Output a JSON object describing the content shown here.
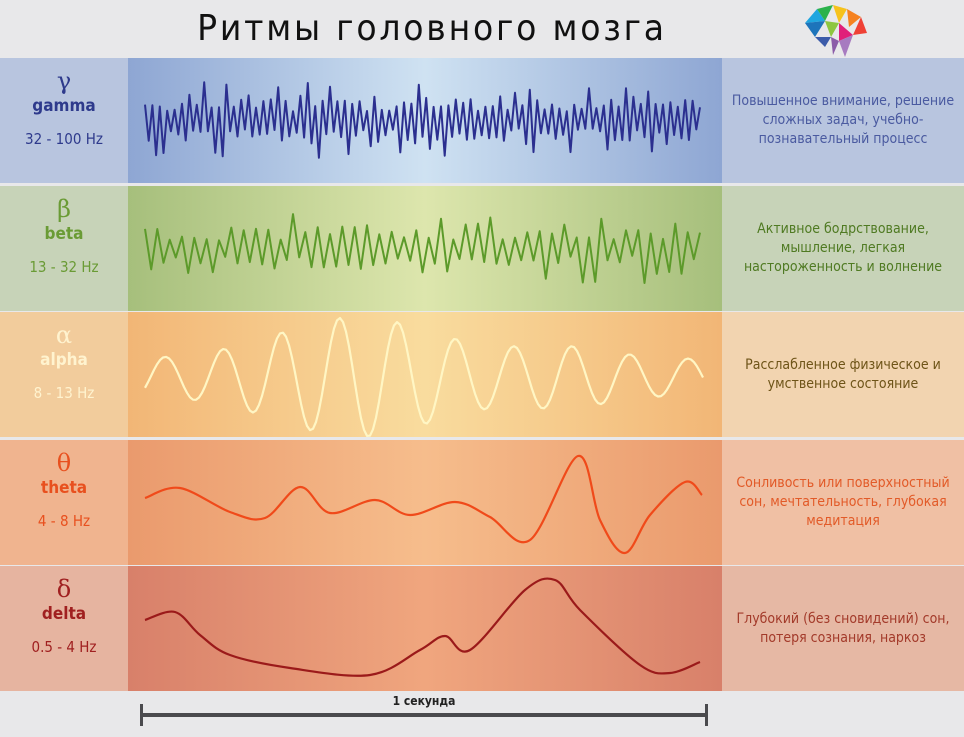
{
  "title": "Ритмы головного мозга",
  "scale_label": "1 секунда",
  "rhythms": [
    {
      "symbol": "γ",
      "name": "gamma",
      "range": "32 - 100 Hz",
      "description": "Повышенное внимание, решение сложных задач, учебно-познавательный процесс",
      "text_color": "#2e3a8c",
      "desc_color": "#4a5aa0",
      "line_color": "#2b2f8f",
      "left_bg": "#b8c5df",
      "right_bg": "#b8c5df",
      "edge": "#8ea6d3",
      "center": "#cfe2f2"
    },
    {
      "symbol": "β",
      "name": "beta",
      "range": "13 - 32 Hz",
      "description": "Активное бодрствование, мышление, легкая настороженность и волнение",
      "text_color": "#6a9b35",
      "desc_color": "#4f7a22",
      "line_color": "#5c9a2a",
      "left_bg": "#c7d3b8",
      "right_bg": "#c7d3b8",
      "edge": "#a6bf7c",
      "center": "#dde6ad"
    },
    {
      "symbol": "α",
      "name": "alpha",
      "range": "8 - 13 Hz",
      "description": "Расслабленное физическое и умственное состояние",
      "text_color": "#fff3cf",
      "desc_color": "#6e5418",
      "line_color": "#fff6c4",
      "left_bg": "#f2cc9c",
      "right_bg": "#f2d4b0",
      "edge": "#f2b676",
      "center": "#f9dc9e"
    },
    {
      "symbol": "θ",
      "name": "theta",
      "range": "4 - 8 Hz",
      "description": "Сонливость или поверхностный сон, мечтательность, глубокая медитация",
      "text_color": "#e8501e",
      "desc_color": "#e25a28",
      "line_color": "#f04a1a",
      "left_bg": "#f0b48f",
      "right_bg": "#f0c0a4",
      "edge": "#ea9a6d",
      "center": "#f6bd8c"
    },
    {
      "symbol": "δ",
      "name": "delta",
      "range": "0.5 - 4 Hz",
      "description": "Глубокий (без сновидений) сон, потеря сознания, наркоз",
      "text_color": "#a02020",
      "desc_color": "#a33a2a",
      "line_color": "#9b1a1a",
      "left_bg": "#e6b4a0",
      "right_bg": "#e6b8a4",
      "edge": "#d8806a",
      "center": "#f0a67e"
    }
  ]
}
